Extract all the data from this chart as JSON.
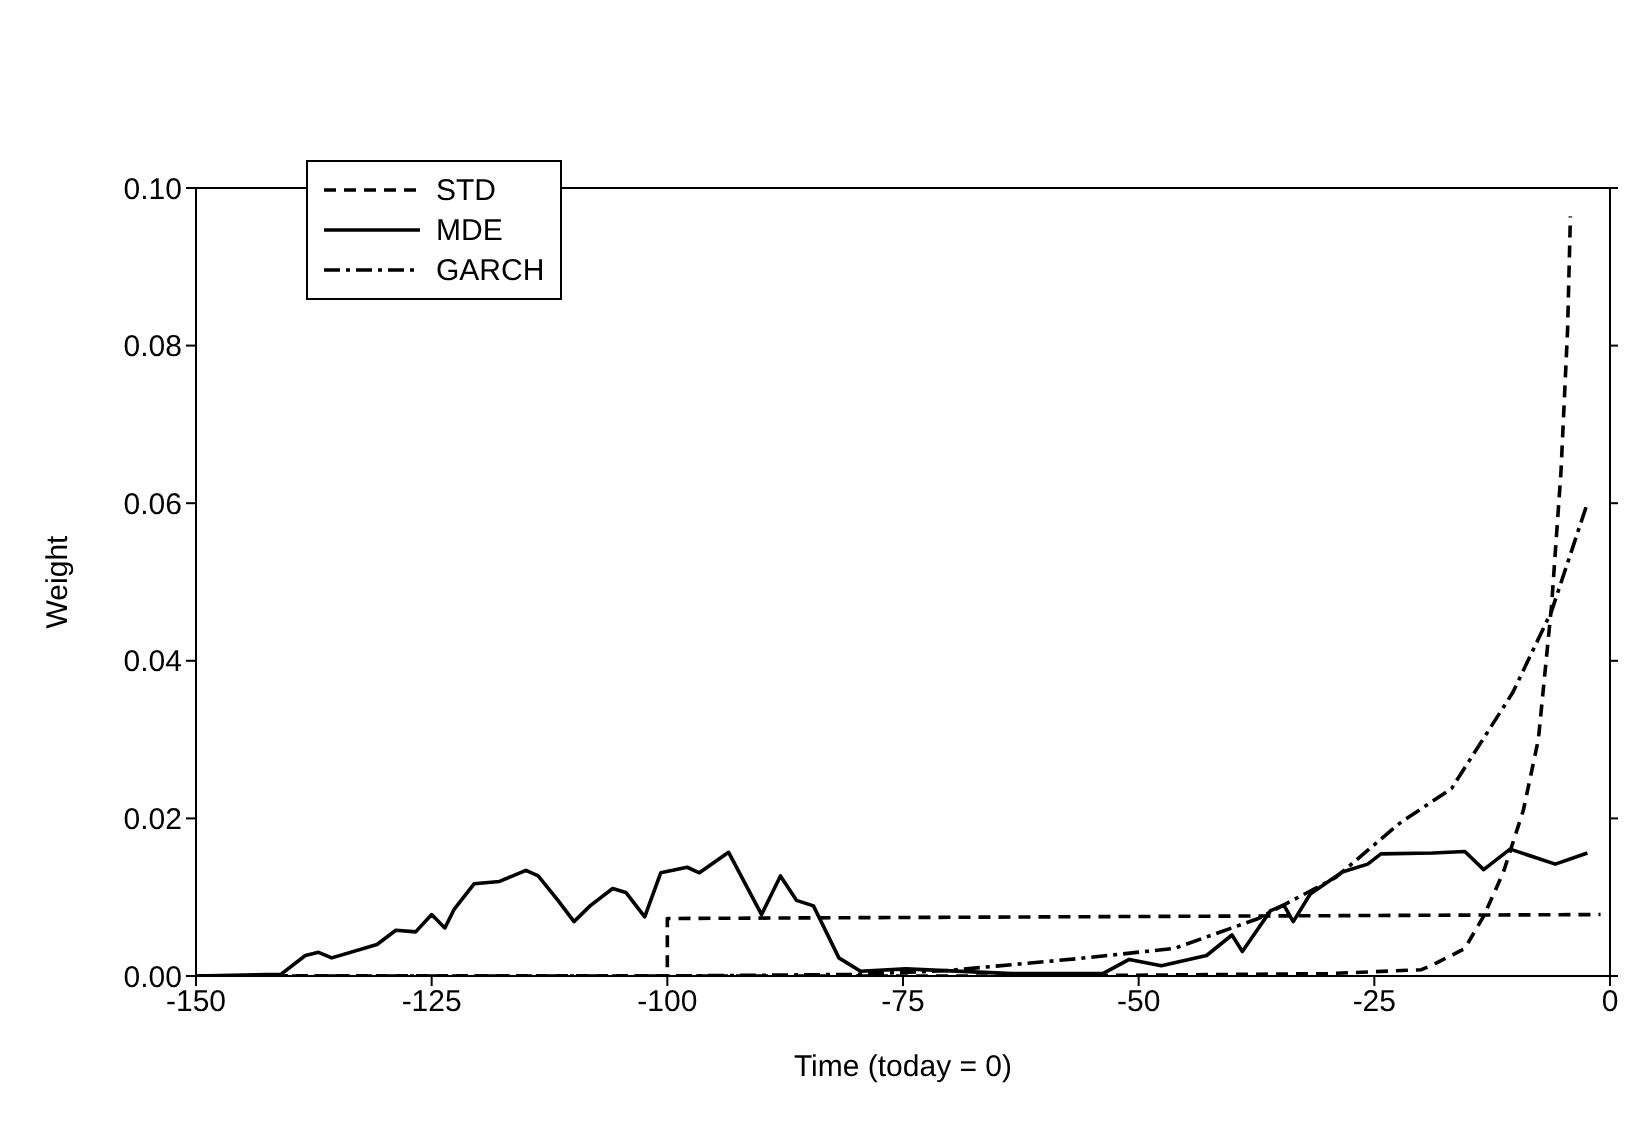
{
  "chart_data": {
    "type": "line",
    "xlabel": "Time (today = 0)",
    "ylabel": "Weight",
    "xlim": [
      -150,
      0
    ],
    "xticks": [
      -150,
      -125,
      -100,
      -75,
      -50,
      -25,
      0
    ],
    "ylim": [
      0,
      0.1
    ],
    "yticks": [
      {
        "value": 0,
        "label": "0.00"
      },
      0.02,
      0.04,
      0.06,
      0.08,
      {
        "value": 0.1,
        "label": "0.10"
      }
    ],
    "legend": "top left",
    "marker": "none",
    "series": [
      {
        "name": "STD",
        "color": "#000000",
        "line_style": "dashed",
        "x": [
          -150,
          -100,
          -100,
          -1
        ],
        "values": [
          0,
          0,
          0.0073,
          0.0078
        ]
      },
      {
        "color": "#000000",
        "line_style": "dashed",
        "x": [
          -150,
          -100,
          -60,
          -30,
          -20,
          -18.8,
          -15.4,
          -13.4,
          -11.3,
          -9.2,
          -7.6,
          -6.2,
          -5.2,
          -4.5,
          -4.2
        ],
        "values": [
          0,
          0,
          0,
          0.0003,
          0.0008,
          0.0014,
          0.0035,
          0.0076,
          0.0132,
          0.021,
          0.03,
          0.047,
          0.064,
          0.082,
          0.0964
        ]
      },
      {
        "name": "MDE",
        "color": "#000000",
        "line_style": "solid",
        "x": [
          -150,
          -141,
          -138.4,
          -137,
          -135.6,
          -130.8,
          -128.8,
          -126.7,
          -125,
          -123.6,
          -122.6,
          -120.5,
          -117.8,
          -115,
          -113.7,
          -111.6,
          -109.9,
          -108.2,
          -105.8,
          -104.4,
          -102.4,
          -100.7,
          -97.9,
          -96.6,
          -93.5,
          -90,
          -88,
          -86.3,
          -84.5,
          -81.8,
          -79.5,
          -74.7,
          -63.4,
          -53.8,
          -51,
          -47.6,
          -42.8,
          -40.1,
          -39,
          -36,
          -34.6,
          -33.6,
          -31.8,
          -28.4,
          -25.7,
          -24.3,
          -18.8,
          -15.4,
          -13.4,
          -10.6,
          -5.8,
          -2.4
        ],
        "values": [
          0,
          0.0002,
          0.0026,
          0.003,
          0.0023,
          0.004,
          0.0058,
          0.0056,
          0.0078,
          0.0061,
          0.0085,
          0.0117,
          0.012,
          0.0134,
          0.0127,
          0.0096,
          0.0069,
          0.0089,
          0.0111,
          0.0106,
          0.0075,
          0.0131,
          0.0138,
          0.0131,
          0.0157,
          0.0078,
          0.0127,
          0.0096,
          0.0089,
          0.0023,
          0.0006,
          0.0009,
          0.0003,
          0.0003,
          0.0021,
          0.0013,
          0.0026,
          0.0052,
          0.0031,
          0.0083,
          0.009,
          0.0069,
          0.0104,
          0.0132,
          0.0142,
          0.0155,
          0.0156,
          0.0158,
          0.0135,
          0.0161,
          0.0142,
          0.0156
        ]
      },
      {
        "name": "GARCH",
        "color": "#000000",
        "line_style": "dashdot",
        "x": [
          -150,
          -100,
          -80,
          -70.2,
          -56.5,
          -46.2,
          -37.3,
          -29.1,
          -22.3,
          -16.8,
          -10.3,
          -6.2,
          -2.4
        ],
        "values": [
          0,
          0,
          0.0002,
          0.0007,
          0.0022,
          0.0035,
          0.0073,
          0.0125,
          0.0194,
          0.0238,
          0.036,
          0.0463,
          0.06
        ]
      }
    ]
  }
}
